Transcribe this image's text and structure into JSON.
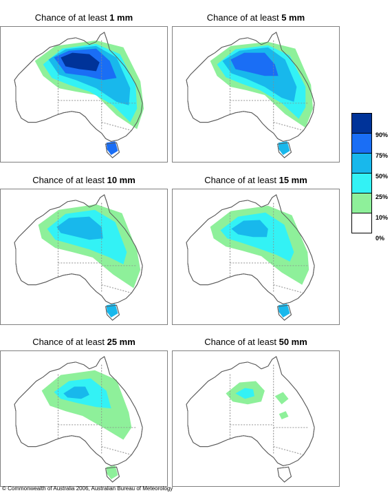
{
  "title_prefix": "Chance of at least",
  "panels": [
    {
      "amount": "1 mm"
    },
    {
      "amount": "5 mm"
    },
    {
      "amount": "10 mm"
    },
    {
      "amount": "15 mm"
    },
    {
      "amount": "25 mm"
    },
    {
      "amount": "50 mm"
    }
  ],
  "legend": {
    "colors": [
      "#003399",
      "#1a6ef5",
      "#18b8ec",
      "#33f2f5",
      "#8ef09a",
      "#ffffff"
    ],
    "labels": [
      "90%",
      "75%",
      "50%",
      "25%",
      "10%",
      "0%"
    ]
  },
  "footer": "© Commonwealth of Australia 2006, Australian Bureau of Meteorology"
}
